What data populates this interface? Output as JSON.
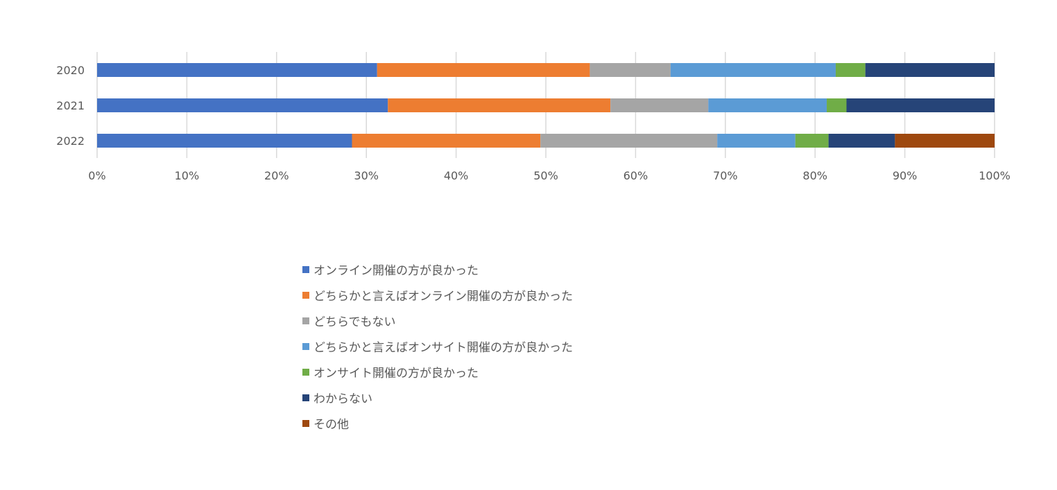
{
  "chart_data": {
    "type": "bar",
    "orientation": "horizontal",
    "stacked": "percent",
    "categories": [
      "2020",
      "2021",
      "2022"
    ],
    "x_ticks": [
      "0%",
      "10%",
      "20%",
      "30%",
      "40%",
      "50%",
      "60%",
      "70%",
      "80%",
      "90%",
      "100%"
    ],
    "xlim": [
      0,
      100
    ],
    "grid": "vertical",
    "legend_position": "bottom",
    "series": [
      {
        "name": "オンライン開催の方が良かった",
        "color": "#4472C4",
        "values": [
          31.2,
          32.4,
          28.4
        ]
      },
      {
        "name": "どちらかと言えばオンライン開催の方が良かった",
        "color": "#ED7D31",
        "values": [
          23.7,
          24.8,
          21.0
        ]
      },
      {
        "name": "どちらでもない",
        "color": "#A5A5A5",
        "values": [
          9.0,
          10.9,
          19.7
        ]
      },
      {
        "name": "どちらかと言えばオンサイト開催の方が良かった",
        "color": "#5B9BD5",
        "values": [
          18.4,
          13.2,
          8.7
        ]
      },
      {
        "name": "オンサイト開催の方が良かった",
        "color": "#70AD47",
        "values": [
          3.3,
          2.2,
          3.7
        ]
      },
      {
        "name": "わからない",
        "color": "#264478",
        "values": [
          14.4,
          16.5,
          7.4
        ]
      },
      {
        "name": "その他",
        "color": "#9E480E",
        "values": [
          0,
          0,
          11.1
        ]
      }
    ]
  }
}
